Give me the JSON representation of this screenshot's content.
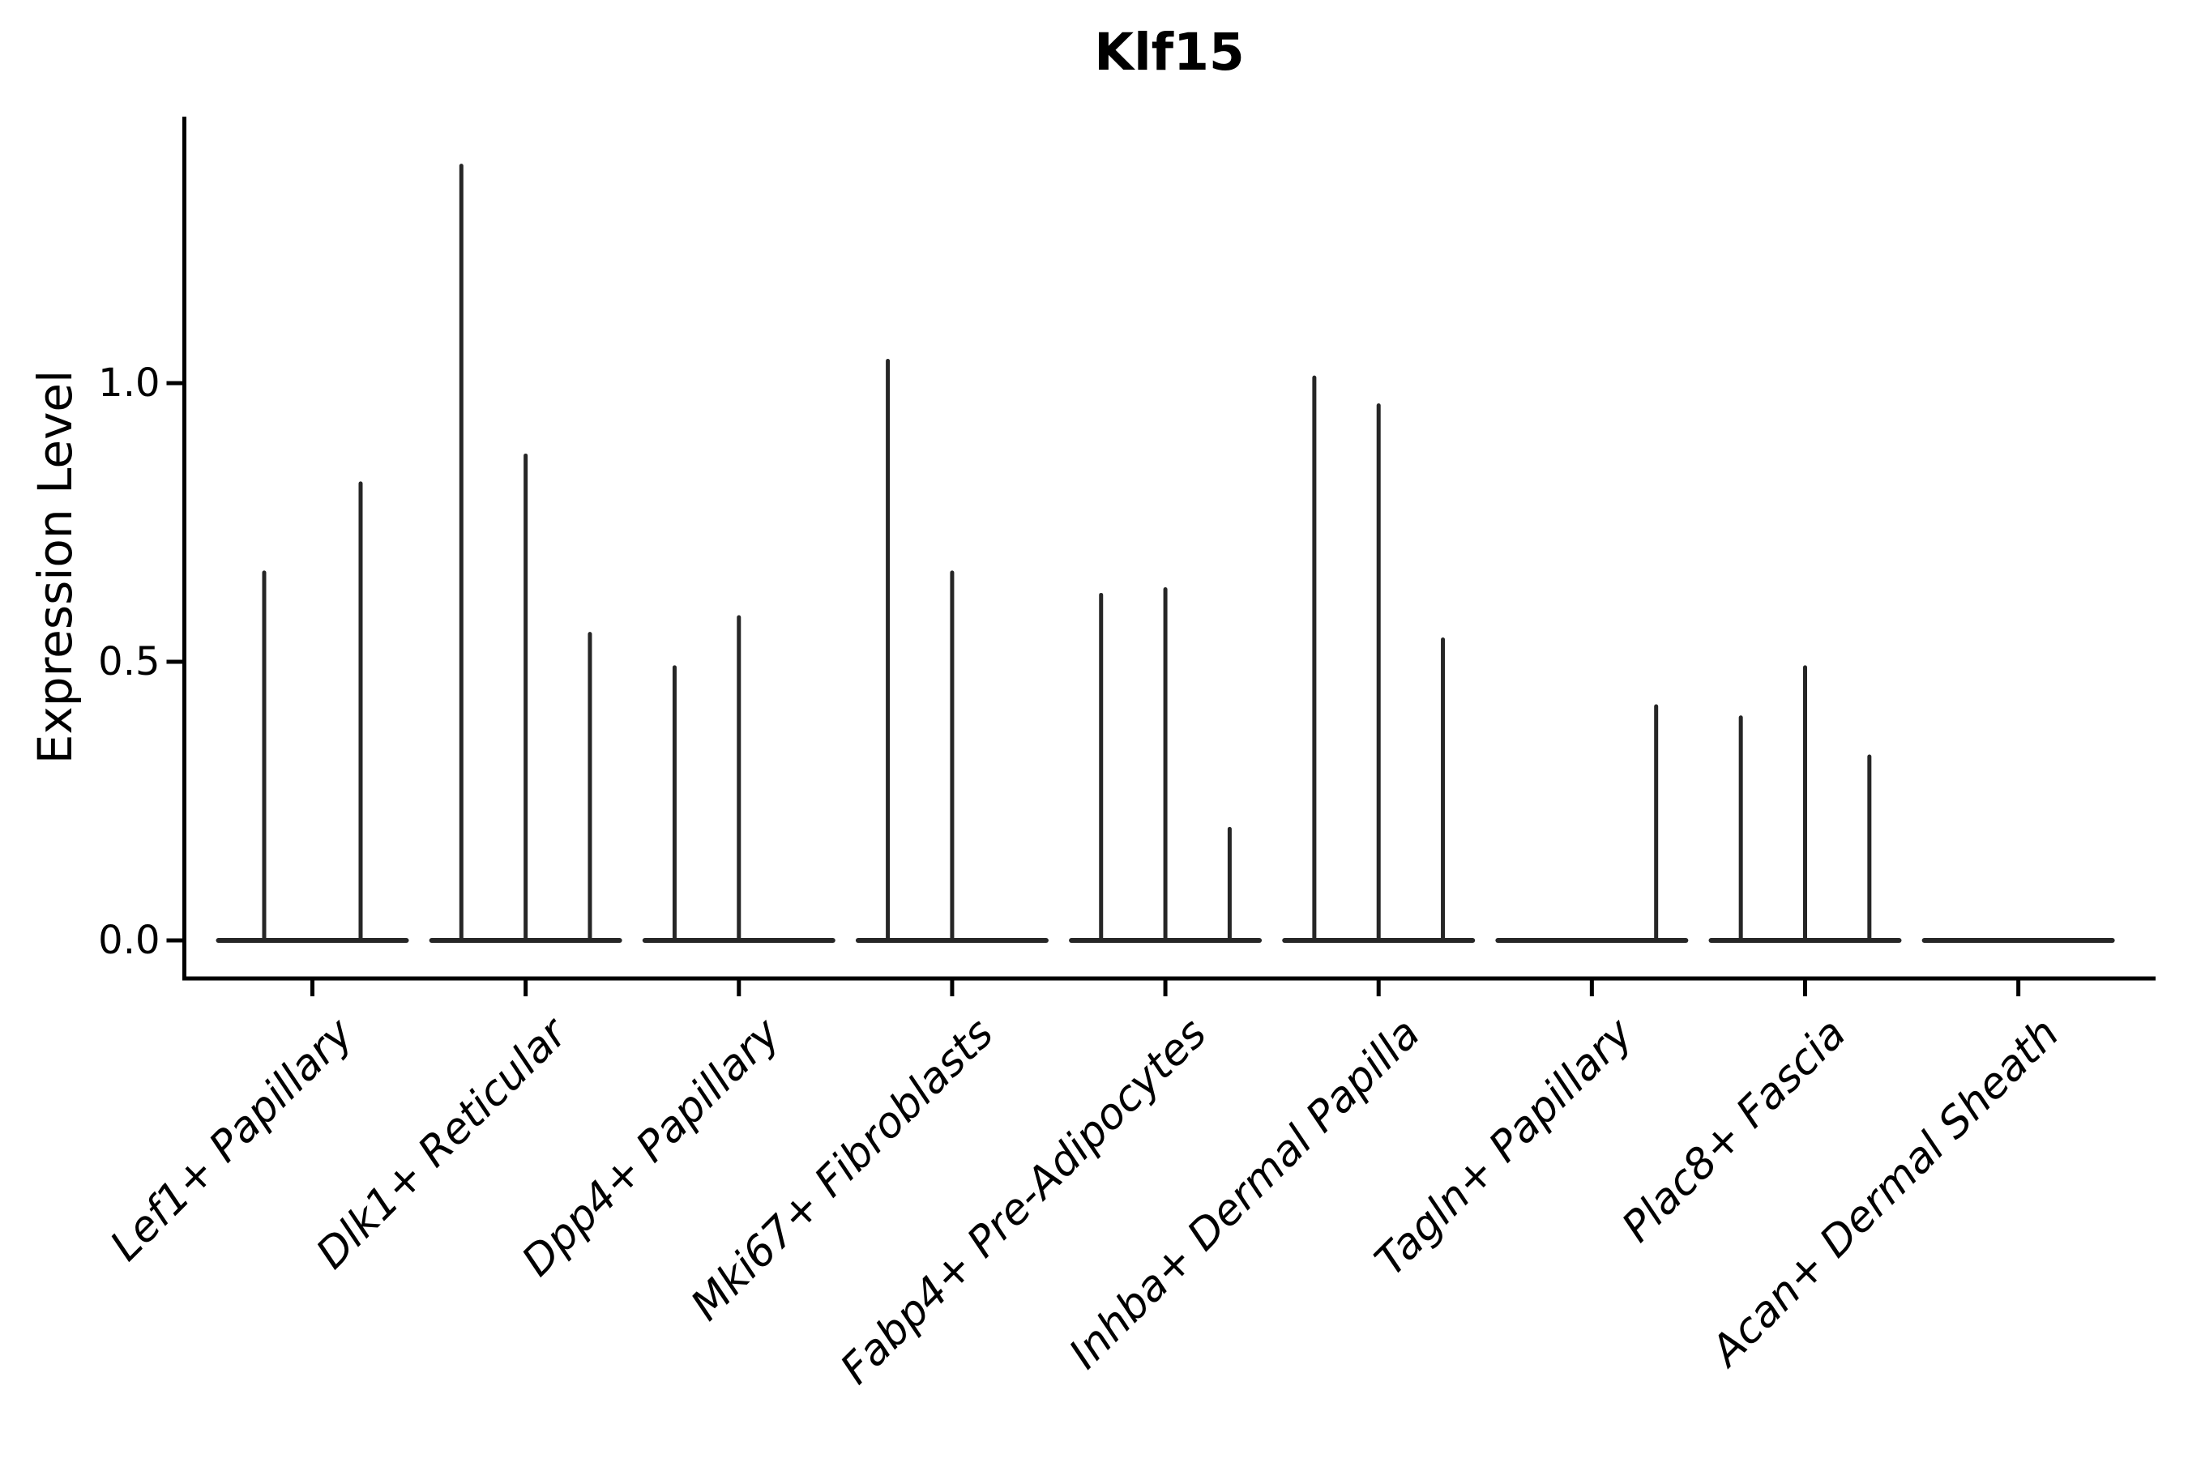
{
  "title": "Klf15",
  "ylabel": "Expression Level",
  "chart_data": {
    "type": "violin",
    "title": "Klf15",
    "xlabel": "",
    "ylabel": "Expression Level",
    "ylim": [
      0,
      1.48
    ],
    "grid": false,
    "legend": "none",
    "yticks": [
      {
        "label": "0.0",
        "value": 0.0
      },
      {
        "label": "0.5",
        "value": 0.5
      },
      {
        "label": "1.0",
        "value": 1.0
      }
    ],
    "categories": [
      "Lef1+ Papillary",
      "Dlk1+ Reticular",
      "Dpp4+ Papillary",
      "Mki67+ Fibroblasts",
      "Fabp4+ Pre-Adipocytes",
      "Inhba+ Dermal Papilla",
      "Tagln+ Papillary",
      "Plac8+ Fascia",
      "Acan+ Dermal Sheath"
    ],
    "groups": [
      {
        "category": "Lef1+ Papillary",
        "violin_maxima": [
          0.66,
          0.82
        ]
      },
      {
        "category": "Dlk1+ Reticular",
        "violin_maxima": [
          1.39,
          0.87,
          0.55
        ]
      },
      {
        "category": "Dpp4+ Papillary",
        "violin_maxima": [
          0.49,
          0.58,
          0
        ]
      },
      {
        "category": "Mki67+ Fibroblasts",
        "violin_maxima": [
          1.04,
          0.66,
          0
        ]
      },
      {
        "category": "Fabp4+ Pre-Adipocytes",
        "violin_maxima": [
          0.62,
          0.63,
          0.2
        ]
      },
      {
        "category": "Inhba+ Dermal Papilla",
        "violin_maxima": [
          1.01,
          0.96,
          0.54
        ]
      },
      {
        "category": "Tagln+ Papillary",
        "violin_maxima": [
          0,
          0,
          0.42
        ]
      },
      {
        "category": "Plac8+ Fascia",
        "violin_maxima": [
          0.4,
          0.49,
          0.33
        ]
      },
      {
        "category": "Acan+ Dermal Sheath",
        "violin_maxima": [
          0,
          0,
          0
        ]
      }
    ],
    "style": {
      "violin_color": "#262626",
      "axis_color": "#000000",
      "text_color": "#000000",
      "background": "#ffffff"
    }
  }
}
